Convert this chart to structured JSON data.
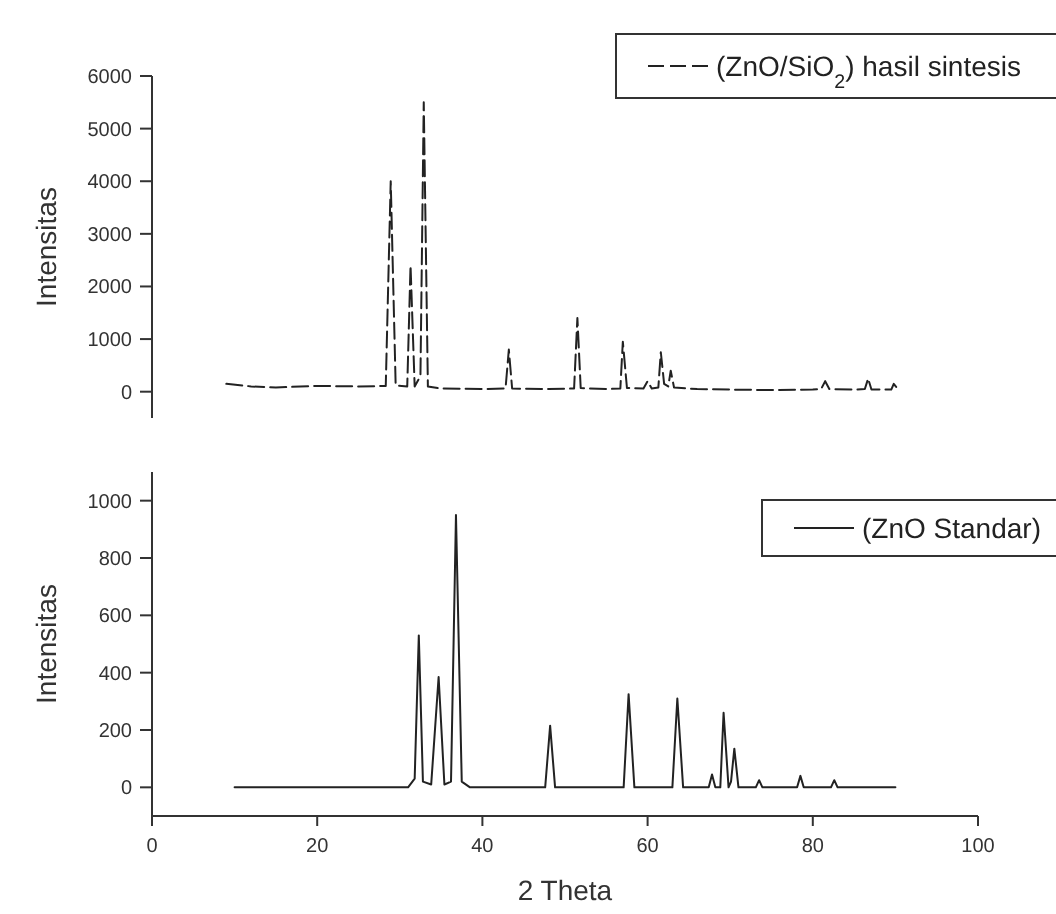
{
  "chart_data": [
    {
      "type": "line",
      "ylabel": "Intensitas",
      "xlim": [
        0,
        100
      ],
      "ylim": [
        -500,
        6000
      ],
      "yticks": [
        0,
        1000,
        2000,
        3000,
        4000,
        5000,
        6000
      ],
      "tick_labels": "y",
      "legend": "top right",
      "line_style": "dashed",
      "series": [
        {
          "name": "(ZnO/SiO$_{2}$) hasil sintesis",
          "color": "#222222",
          "x": [
            9,
            12,
            15,
            20,
            25,
            28.3,
            28.9,
            29.5,
            30.9,
            31.3,
            31.8,
            32.5,
            32.9,
            33.4,
            35,
            40,
            42.8,
            43.2,
            43.6,
            48,
            51.1,
            51.5,
            51.9,
            55,
            56.7,
            57,
            57.5,
            59.5,
            60,
            60.5,
            61.3,
            61.6,
            62,
            62.5,
            62.8,
            63.2,
            66,
            70,
            75,
            80,
            81,
            81.5,
            82,
            85,
            86.3,
            86.7,
            87.1,
            89.5,
            89.8,
            90.4
          ],
          "values": [
            150,
            100,
            80,
            110,
            100,
            110,
            4000,
            120,
            100,
            2400,
            100,
            300,
            5500,
            100,
            60,
            50,
            60,
            800,
            60,
            50,
            60,
            1400,
            70,
            50,
            60,
            950,
            70,
            60,
            200,
            60,
            80,
            750,
            150,
            100,
            400,
            80,
            50,
            40,
            30,
            40,
            50,
            200,
            50,
            40,
            50,
            250,
            40,
            40,
            150,
            30
          ]
        }
      ]
    },
    {
      "type": "line",
      "ylabel": "Intensitas",
      "xlabel": "2 Theta",
      "xlim": [
        0,
        100
      ],
      "ylim": [
        -100,
        1100
      ],
      "xticks": [
        0,
        20,
        40,
        60,
        80,
        100
      ],
      "yticks": [
        0,
        200,
        400,
        600,
        800,
        1000
      ],
      "legend": "top right",
      "line_style": "solid",
      "series": [
        {
          "name": "(ZnO Standar)",
          "color": "#222222",
          "x": [
            10,
            31,
            31.8,
            32.3,
            32.8,
            33.8,
            34.7,
            35.4,
            36.2,
            36.8,
            37.5,
            38.5,
            47.6,
            48.2,
            48.8,
            57.1,
            57.7,
            58.4,
            63,
            63.6,
            64.3,
            67.4,
            67.8,
            68.2,
            68.8,
            69.2,
            69.8,
            70.1,
            70.5,
            71,
            73.1,
            73.5,
            73.9,
            78.1,
            78.5,
            78.9,
            82.2,
            82.6,
            83,
            90
          ],
          "values": [
            0,
            0,
            30,
            530,
            20,
            10,
            385,
            10,
            20,
            950,
            20,
            0,
            0,
            215,
            0,
            0,
            325,
            0,
            0,
            310,
            0,
            0,
            45,
            0,
            0,
            260,
            0,
            20,
            135,
            0,
            0,
            25,
            0,
            0,
            40,
            0,
            0,
            25,
            0,
            0
          ]
        }
      ]
    }
  ]
}
